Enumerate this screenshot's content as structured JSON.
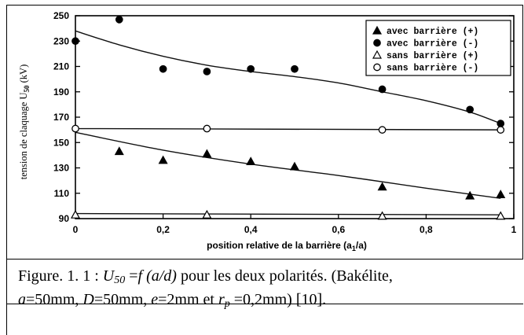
{
  "chart_data": {
    "type": "scatter",
    "ylabel": "tension de claquage U",
    "ylabel_sub": "50",
    "ylabel_unit": " (kV)",
    "xlabel": "position relative de la barrière (a",
    "xlabel_sub": "1",
    "xlabel_unit": "/a)",
    "xlim": [
      0,
      1
    ],
    "ylim": [
      90,
      250
    ],
    "xticks": [
      "0",
      "0,2",
      "0,4",
      "0,6",
      "0,8",
      "1"
    ],
    "xtick_values": [
      0,
      0.2,
      0.4,
      0.6,
      0.8,
      1.0
    ],
    "yticks": [
      "90",
      "110",
      "130",
      "150",
      "170",
      "190",
      "210",
      "230",
      "250"
    ],
    "ytick_values": [
      90,
      110,
      130,
      150,
      170,
      190,
      210,
      230,
      250
    ],
    "legend_position": "top-right",
    "series": [
      {
        "name": "avec barrière (+)",
        "marker": "triangle-filled",
        "points": [
          [
            0.1,
            143
          ],
          [
            0.2,
            136
          ],
          [
            0.3,
            141
          ],
          [
            0.4,
            135
          ],
          [
            0.5,
            131
          ],
          [
            0.7,
            115
          ],
          [
            0.9,
            108
          ],
          [
            0.97,
            109
          ]
        ],
        "fit": [
          [
            0.0,
            158
          ],
          [
            0.2,
            144
          ],
          [
            0.4,
            133
          ],
          [
            0.6,
            124
          ],
          [
            0.8,
            114
          ],
          [
            0.97,
            106
          ]
        ]
      },
      {
        "name": "avec barrière (-)",
        "marker": "circle-filled",
        "points": [
          [
            0.0,
            230
          ],
          [
            0.1,
            247
          ],
          [
            0.2,
            208
          ],
          [
            0.3,
            206
          ],
          [
            0.4,
            208
          ],
          [
            0.5,
            208
          ],
          [
            0.7,
            192
          ],
          [
            0.9,
            176
          ],
          [
            0.97,
            165
          ]
        ],
        "fit": [
          [
            0.0,
            238
          ],
          [
            0.1,
            227
          ],
          [
            0.2,
            218
          ],
          [
            0.3,
            211
          ],
          [
            0.4,
            206
          ],
          [
            0.5,
            202
          ],
          [
            0.6,
            197
          ],
          [
            0.7,
            190
          ],
          [
            0.8,
            183
          ],
          [
            0.9,
            174
          ],
          [
            0.97,
            165
          ]
        ]
      },
      {
        "name": "sans barrière (+)",
        "marker": "triangle-open",
        "points": [
          [
            0.0,
            93
          ],
          [
            0.3,
            93
          ],
          [
            0.7,
            92
          ],
          [
            0.97,
            92
          ]
        ],
        "fit": [
          [
            0.0,
            94
          ],
          [
            0.97,
            93
          ]
        ]
      },
      {
        "name": "sans barrière (-)",
        "marker": "circle-open",
        "points": [
          [
            0.0,
            161
          ],
          [
            0.3,
            161
          ],
          [
            0.7,
            160
          ],
          [
            0.97,
            160
          ]
        ],
        "fit": [
          [
            0.0,
            161
          ],
          [
            0.97,
            160
          ]
        ]
      }
    ]
  },
  "caption": {
    "prefix": "Figure. 1. 1 : ",
    "u": "U",
    "u_sub": "50",
    "eq": " =",
    "f": "f",
    "arg": " (a/d)",
    "rest1": " pour les deux polarités. (Bakélite,",
    "a": "a",
    "a_val": "=50mm, ",
    "D": "D",
    "D_val": "=50mm, ",
    "e": "e",
    "e_val": "=2mm et  ",
    "r": "r",
    "r_sub": "p",
    "r_val": " =0,2mm) [10]."
  }
}
